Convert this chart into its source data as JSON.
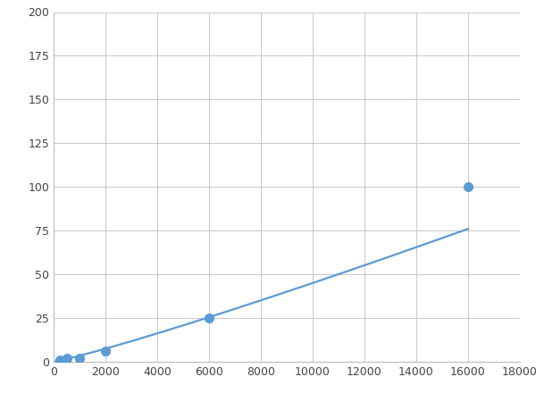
{
  "x": [
    250,
    500,
    1000,
    2000,
    6000,
    16000
  ],
  "y": [
    1,
    2,
    2,
    6,
    25,
    100
  ],
  "line_color": "#5B9BD5",
  "marker_color": "#5B9BD5",
  "marker_size": 7,
  "line_width": 1.6,
  "xlim": [
    0,
    18000
  ],
  "ylim": [
    0,
    200
  ],
  "xticks": [
    0,
    2000,
    4000,
    6000,
    8000,
    10000,
    12000,
    14000,
    16000,
    18000
  ],
  "yticks": [
    0,
    25,
    50,
    75,
    100,
    125,
    150,
    175,
    200
  ],
  "grid_color": "#C8C8C8",
  "background_color": "#FFFFFF",
  "fig_background": "#FFFFFF",
  "figsize": [
    6.0,
    4.5
  ],
  "dpi": 100
}
